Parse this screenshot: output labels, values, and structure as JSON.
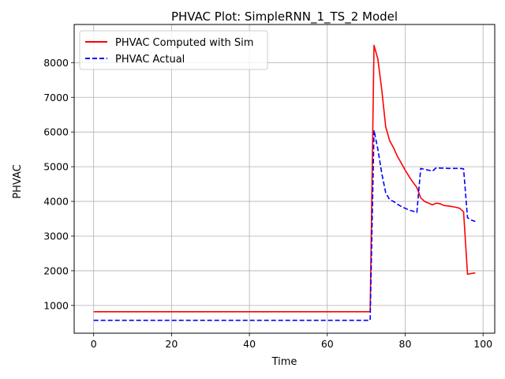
{
  "chart_data": {
    "type": "line",
    "title": "PHVAC Plot: SimpleRNN_1_TS_2 Model",
    "xlabel": "Time",
    "ylabel": "PHVAC",
    "xlim": [
      -5,
      103
    ],
    "ylim": [
      200,
      9100
    ],
    "xticks": [
      0,
      20,
      40,
      60,
      80,
      100
    ],
    "yticks": [
      1000,
      2000,
      3000,
      4000,
      5000,
      6000,
      7000,
      8000
    ],
    "grid": true,
    "legend": "top-left",
    "series": [
      {
        "name": "PHVAC Computed with Sim",
        "color": "#ff0000",
        "style": "solid",
        "x": [
          0,
          10,
          20,
          30,
          40,
          50,
          60,
          70,
          71,
          72,
          73,
          74,
          75,
          76,
          77,
          78,
          79,
          80,
          81,
          82,
          83,
          84,
          85,
          86,
          87,
          88,
          89,
          90,
          91,
          92,
          93,
          94,
          95,
          96,
          97,
          98
        ],
        "y": [
          820,
          820,
          820,
          820,
          820,
          820,
          820,
          820,
          820,
          8500,
          8100,
          7200,
          6150,
          5750,
          5550,
          5300,
          5100,
          4900,
          4720,
          4550,
          4400,
          4100,
          4000,
          3950,
          3900,
          3950,
          3930,
          3880,
          3870,
          3850,
          3830,
          3800,
          3700,
          1900,
          1920,
          1940
        ]
      },
      {
        "name": "PHVAC Actual",
        "color": "#0000ff",
        "style": "dashed",
        "x": [
          0,
          10,
          20,
          30,
          40,
          50,
          60,
          70,
          71,
          72,
          73,
          74,
          75,
          76,
          77,
          78,
          79,
          80,
          81,
          82,
          83,
          84,
          85,
          86,
          87,
          88,
          89,
          90,
          91,
          92,
          93,
          94,
          95,
          96,
          97,
          98
        ],
        "y": [
          570,
          570,
          570,
          570,
          570,
          570,
          570,
          570,
          570,
          6050,
          5500,
          4800,
          4250,
          4050,
          4000,
          3920,
          3850,
          3800,
          3750,
          3720,
          3680,
          4950,
          4920,
          4900,
          4870,
          4970,
          4960,
          4960,
          4950,
          4950,
          4950,
          4950,
          4940,
          3530,
          3460,
          3420
        ]
      }
    ]
  }
}
